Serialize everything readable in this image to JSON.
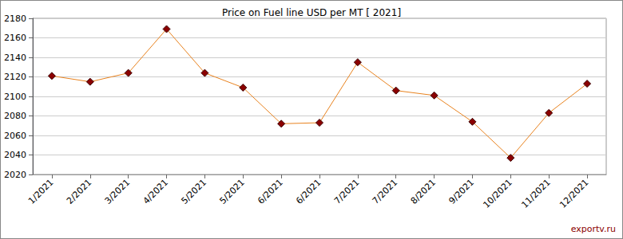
{
  "chart_data": {
    "type": "line",
    "title": "Price on Fuel line USD per MT [ 2021]",
    "categories": [
      "1/2021",
      "2/2021",
      "3/2021",
      "4/2021",
      "5/2021",
      "5/2021",
      "6/2021",
      "6/2021",
      "7/2021",
      "7/2021",
      "8/2021",
      "9/2021",
      "10/2021",
      "11/2021",
      "12/2021"
    ],
    "values": [
      2121,
      2115,
      2124,
      2169,
      2124,
      2109,
      2072,
      2073,
      2135,
      2106,
      2101,
      2074,
      2037,
      2083,
      2113
    ],
    "color": "#e8821e",
    "marker": "diamond",
    "ylim": [
      2020,
      2180
    ],
    "yticks": [
      2020,
      2040,
      2060,
      2080,
      2100,
      2120,
      2140,
      2160,
      2180
    ],
    "grid": true,
    "annotation": "exportv.ru"
  }
}
